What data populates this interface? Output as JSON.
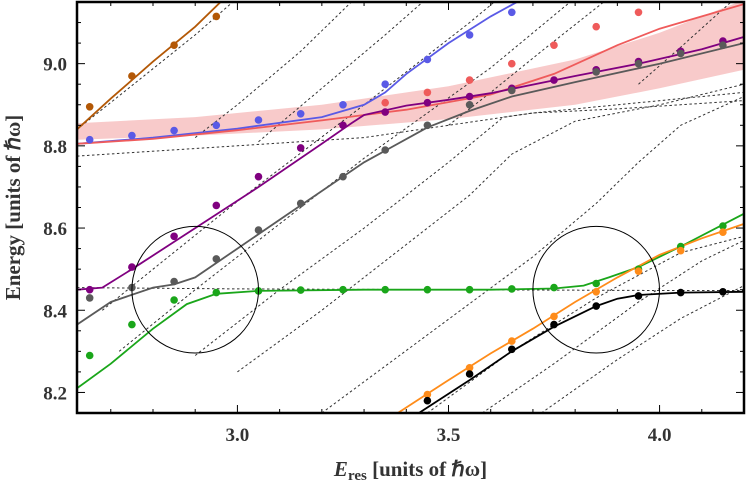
{
  "chart_data": {
    "type": "line",
    "xlabel_main": "E",
    "xlabel_sub": "res",
    "xlabel_rest": " [units of ℏω]",
    "ylabel": "Energy [units of ℏω]",
    "xlim": [
      2.62,
      4.2
    ],
    "ylim": [
      8.15,
      9.15
    ],
    "xticks": [
      3.0,
      3.5,
      4.0
    ],
    "xtick_labels": [
      "3.0",
      "3.5",
      "4.0"
    ],
    "yticks": [
      8.2,
      8.4,
      8.6,
      8.8,
      9.0
    ],
    "ytick_labels": [
      "8.2",
      "8.4",
      "8.6",
      "8.8",
      "9.0"
    ],
    "band": {
      "color": "#f7c1c1",
      "upper": [
        [
          2.62,
          8.855
        ],
        [
          2.9,
          8.87
        ],
        [
          3.2,
          8.9
        ],
        [
          3.5,
          8.945
        ],
        [
          3.8,
          9.01
        ],
        [
          4.0,
          9.075
        ],
        [
          4.2,
          9.155
        ]
      ],
      "lower": [
        [
          2.62,
          8.815
        ],
        [
          2.9,
          8.825
        ],
        [
          3.2,
          8.84
        ],
        [
          3.5,
          8.865
        ],
        [
          3.8,
          8.9
        ],
        [
          4.0,
          8.94
        ],
        [
          4.2,
          8.985
        ]
      ]
    },
    "series": [
      {
        "color": "#b35806",
        "line": [
          [
            2.62,
            8.84
          ],
          [
            2.7,
            8.915
          ],
          [
            2.8,
            9.005
          ],
          [
            2.9,
            9.09
          ],
          [
            2.97,
            9.16
          ]
        ],
        "points": [
          [
            2.65,
            8.895
          ],
          [
            2.75,
            8.97
          ],
          [
            2.85,
            9.045
          ],
          [
            2.95,
            9.115
          ]
        ]
      },
      {
        "color": "#5a5ae6",
        "line": [
          [
            2.62,
            8.805
          ],
          [
            2.8,
            8.82
          ],
          [
            3.0,
            8.842
          ],
          [
            3.2,
            8.87
          ],
          [
            3.3,
            8.9
          ],
          [
            3.35,
            8.93
          ],
          [
            3.4,
            8.975
          ],
          [
            3.5,
            9.05
          ],
          [
            3.6,
            9.115
          ],
          [
            3.68,
            9.16
          ]
        ],
        "points": [
          [
            2.65,
            8.815
          ],
          [
            2.75,
            8.825
          ],
          [
            2.85,
            8.837
          ],
          [
            2.95,
            8.85
          ],
          [
            3.05,
            8.863
          ],
          [
            3.15,
            8.878
          ],
          [
            3.25,
            8.9
          ],
          [
            3.35,
            8.95
          ],
          [
            3.45,
            9.01
          ],
          [
            3.55,
            9.07
          ],
          [
            3.65,
            9.125
          ]
        ]
      },
      {
        "color": "#ef5b5b",
        "line": [
          [
            2.62,
            8.805
          ],
          [
            2.8,
            8.817
          ],
          [
            3.0,
            8.838
          ],
          [
            3.2,
            8.862
          ],
          [
            3.4,
            8.888
          ],
          [
            3.6,
            8.925
          ],
          [
            3.75,
            8.975
          ],
          [
            3.9,
            9.045
          ],
          [
            4.0,
            9.085
          ],
          [
            4.1,
            9.115
          ],
          [
            4.2,
            9.145
          ]
        ],
        "points": [
          [
            3.35,
            8.905
          ],
          [
            3.45,
            8.93
          ],
          [
            3.55,
            8.96
          ],
          [
            3.65,
            9.0
          ],
          [
            3.75,
            9.045
          ],
          [
            3.85,
            9.09
          ],
          [
            3.95,
            9.125
          ]
        ]
      },
      {
        "color": "#800080",
        "line": [
          [
            2.62,
            8.45
          ],
          [
            2.68,
            8.455
          ],
          [
            2.75,
            8.5
          ],
          [
            2.9,
            8.6
          ],
          [
            3.05,
            8.7
          ],
          [
            3.2,
            8.805
          ],
          [
            3.27,
            8.855
          ],
          [
            3.3,
            8.875
          ],
          [
            3.4,
            8.898
          ],
          [
            3.5,
            8.912
          ],
          [
            3.6,
            8.928
          ],
          [
            3.8,
            8.97
          ],
          [
            3.95,
            9.0
          ],
          [
            4.1,
            9.035
          ],
          [
            4.2,
            9.065
          ]
        ],
        "points": [
          [
            2.65,
            8.45
          ],
          [
            2.75,
            8.505
          ],
          [
            2.85,
            8.58
          ],
          [
            2.95,
            8.655
          ],
          [
            3.05,
            8.725
          ],
          [
            3.15,
            8.795
          ],
          [
            3.25,
            8.85
          ],
          [
            3.35,
            8.882
          ],
          [
            3.45,
            8.905
          ],
          [
            3.55,
            8.92
          ],
          [
            3.65,
            8.94
          ],
          [
            3.75,
            8.96
          ],
          [
            3.85,
            8.985
          ],
          [
            3.95,
            9.005
          ],
          [
            4.05,
            9.03
          ],
          [
            4.15,
            9.055
          ]
        ]
      },
      {
        "color": "#5a5a5a",
        "line": [
          [
            2.62,
            8.365
          ],
          [
            2.7,
            8.42
          ],
          [
            2.8,
            8.455
          ],
          [
            2.85,
            8.463
          ],
          [
            2.9,
            8.48
          ],
          [
            3.0,
            8.55
          ],
          [
            3.15,
            8.655
          ],
          [
            3.3,
            8.76
          ],
          [
            3.45,
            8.845
          ],
          [
            3.55,
            8.885
          ],
          [
            3.65,
            8.92
          ],
          [
            3.8,
            8.955
          ],
          [
            4.0,
            9.0
          ],
          [
            4.2,
            9.05
          ]
        ],
        "points": [
          [
            2.65,
            8.43
          ],
          [
            2.75,
            8.455
          ],
          [
            2.85,
            8.47
          ],
          [
            2.95,
            8.525
          ],
          [
            3.05,
            8.595
          ],
          [
            3.15,
            8.66
          ],
          [
            3.25,
            8.725
          ],
          [
            3.35,
            8.79
          ],
          [
            3.45,
            8.85
          ],
          [
            3.55,
            8.9
          ],
          [
            3.65,
            8.935
          ],
          [
            3.85,
            8.98
          ],
          [
            3.95,
            9.0
          ],
          [
            4.05,
            9.025
          ],
          [
            4.15,
            9.045
          ]
        ]
      },
      {
        "color": "#1aa61a",
        "line": [
          [
            2.62,
            8.21
          ],
          [
            2.7,
            8.27
          ],
          [
            2.8,
            8.355
          ],
          [
            2.88,
            8.415
          ],
          [
            2.95,
            8.44
          ],
          [
            3.05,
            8.447
          ],
          [
            3.3,
            8.45
          ],
          [
            3.6,
            8.45
          ],
          [
            3.75,
            8.453
          ],
          [
            3.82,
            8.46
          ],
          [
            3.88,
            8.48
          ],
          [
            3.95,
            8.505
          ],
          [
            4.05,
            8.555
          ],
          [
            4.2,
            8.635
          ]
        ],
        "points": [
          [
            2.65,
            8.29
          ],
          [
            2.75,
            8.365
          ],
          [
            2.85,
            8.425
          ],
          [
            2.95,
            8.443
          ],
          [
            3.05,
            8.447
          ],
          [
            3.15,
            8.449
          ],
          [
            3.25,
            8.45
          ],
          [
            3.35,
            8.45
          ],
          [
            3.45,
            8.45
          ],
          [
            3.55,
            8.45
          ],
          [
            3.65,
            8.452
          ],
          [
            3.75,
            8.455
          ],
          [
            3.85,
            8.465
          ],
          [
            3.95,
            8.5
          ],
          [
            4.05,
            8.555
          ],
          [
            4.15,
            8.605
          ]
        ]
      },
      {
        "color": "#ff8c1a",
        "line": [
          [
            3.38,
            8.15
          ],
          [
            3.5,
            8.23
          ],
          [
            3.6,
            8.295
          ],
          [
            3.7,
            8.355
          ],
          [
            3.8,
            8.42
          ],
          [
            3.9,
            8.48
          ],
          [
            4.0,
            8.535
          ],
          [
            4.1,
            8.575
          ],
          [
            4.2,
            8.61
          ]
        ],
        "points": [
          [
            3.45,
            8.195
          ],
          [
            3.55,
            8.26
          ],
          [
            3.65,
            8.325
          ],
          [
            3.75,
            8.385
          ],
          [
            3.85,
            8.445
          ],
          [
            3.95,
            8.495
          ],
          [
            4.05,
            8.545
          ],
          [
            4.15,
            8.59
          ]
        ]
      },
      {
        "color": "#000000",
        "line": [
          [
            3.43,
            8.15
          ],
          [
            3.55,
            8.23
          ],
          [
            3.65,
            8.3
          ],
          [
            3.75,
            8.36
          ],
          [
            3.85,
            8.41
          ],
          [
            3.9,
            8.428
          ],
          [
            3.95,
            8.437
          ],
          [
            4.05,
            8.443
          ],
          [
            4.2,
            8.445
          ]
        ],
        "points": [
          [
            3.45,
            8.18
          ],
          [
            3.55,
            8.245
          ],
          [
            3.65,
            8.305
          ],
          [
            3.75,
            8.365
          ],
          [
            3.85,
            8.41
          ],
          [
            3.95,
            8.435
          ],
          [
            4.05,
            8.443
          ],
          [
            4.15,
            8.445
          ]
        ]
      }
    ],
    "dashed": [
      [
        [
          2.62,
          8.84
        ],
        [
          2.73,
          8.93
        ],
        [
          2.9,
          9.07
        ],
        [
          3.0,
          9.16
        ]
      ],
      [
        [
          2.9,
          8.82
        ],
        [
          3.0,
          8.9
        ],
        [
          3.15,
          9.03
        ],
        [
          3.28,
          9.16
        ]
      ],
      [
        [
          3.05,
          8.81
        ],
        [
          3.2,
          8.94
        ],
        [
          3.35,
          9.07
        ],
        [
          3.45,
          9.16
        ]
      ],
      [
        [
          3.5,
          8.85
        ],
        [
          3.6,
          8.93
        ],
        [
          3.72,
          9.03
        ],
        [
          3.88,
          9.16
        ]
      ],
      [
        [
          3.95,
          8.95
        ],
        [
          4.05,
          9.04
        ],
        [
          4.18,
          9.16
        ]
      ],
      [
        [
          2.68,
          8.4
        ],
        [
          2.8,
          8.5
        ],
        [
          3.0,
          8.665
        ],
        [
          3.3,
          8.9
        ],
        [
          3.55,
          9.1
        ],
        [
          3.62,
          9.16
        ]
      ],
      [
        [
          2.72,
          8.3
        ],
        [
          2.9,
          8.45
        ],
        [
          3.1,
          8.61
        ],
        [
          3.3,
          8.77
        ],
        [
          3.6,
          8.99
        ],
        [
          3.8,
          9.16
        ]
      ],
      [
        [
          2.9,
          8.29
        ],
        [
          3.1,
          8.45
        ],
        [
          3.3,
          8.6
        ],
        [
          3.5,
          8.76
        ],
        [
          3.63,
          8.87
        ],
        [
          3.7,
          8.88
        ],
        [
          3.9,
          8.9
        ],
        [
          4.2,
          8.93
        ]
      ],
      [
        [
          3.0,
          8.25
        ],
        [
          3.2,
          8.4
        ],
        [
          3.4,
          8.56
        ],
        [
          3.55,
          8.68
        ],
        [
          3.65,
          8.78
        ],
        [
          3.8,
          8.86
        ],
        [
          4.0,
          8.9
        ],
        [
          4.2,
          8.95
        ]
      ],
      [
        [
          3.2,
          8.15
        ],
        [
          3.45,
          8.34
        ],
        [
          3.7,
          8.53
        ],
        [
          3.85,
          8.66
        ],
        [
          3.95,
          8.76
        ],
        [
          4.05,
          8.85
        ],
        [
          4.2,
          8.92
        ]
      ],
      [
        [
          3.45,
          8.15
        ],
        [
          3.65,
          8.3
        ],
        [
          3.85,
          8.43
        ],
        [
          4.05,
          8.54
        ],
        [
          4.2,
          8.58
        ]
      ],
      [
        [
          3.58,
          8.15
        ],
        [
          3.75,
          8.27
        ],
        [
          3.95,
          8.42
        ],
        [
          4.1,
          8.52
        ],
        [
          4.2,
          8.57
        ]
      ],
      [
        [
          3.72,
          8.15
        ],
        [
          3.9,
          8.28
        ],
        [
          4.05,
          8.38
        ],
        [
          4.2,
          8.46
        ]
      ],
      [
        [
          2.62,
          8.775
        ],
        [
          3.0,
          8.8
        ],
        [
          3.3,
          8.82
        ],
        [
          3.5,
          8.85
        ],
        [
          3.7,
          8.88
        ],
        [
          3.9,
          8.89
        ],
        [
          4.2,
          8.91
        ]
      ],
      [
        [
          2.62,
          8.455
        ],
        [
          3.0,
          8.452
        ],
        [
          3.5,
          8.45
        ],
        [
          4.0,
          8.448
        ],
        [
          4.2,
          8.448
        ]
      ]
    ],
    "circles": [
      {
        "cx": 2.9,
        "cy": 8.45,
        "r": 0.15
      },
      {
        "cx": 3.85,
        "cy": 8.45,
        "r": 0.15
      }
    ]
  }
}
